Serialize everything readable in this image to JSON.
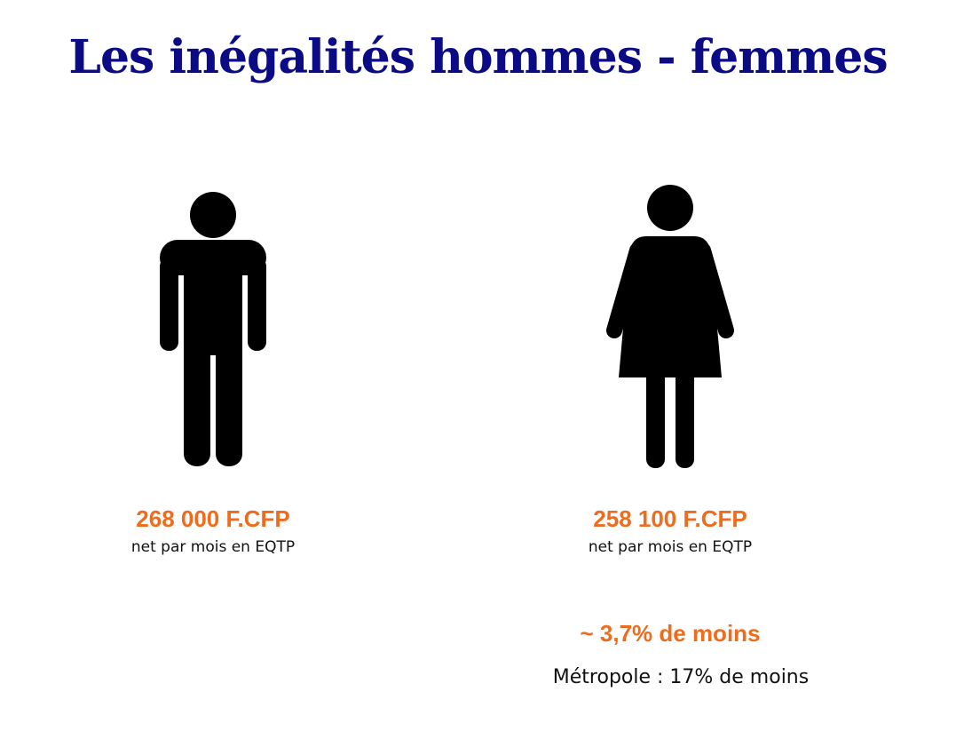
{
  "title": "Les inégalités hommes - femmes",
  "men": {
    "amount": "268 000 F.CFP",
    "caption": "net par mois en EQTP"
  },
  "women": {
    "amount": "258 100 F.CFP",
    "caption": "net par mois en EQTP"
  },
  "difference": "~ 3,7% de moins",
  "metropole": "Métropole : 17% de moins"
}
